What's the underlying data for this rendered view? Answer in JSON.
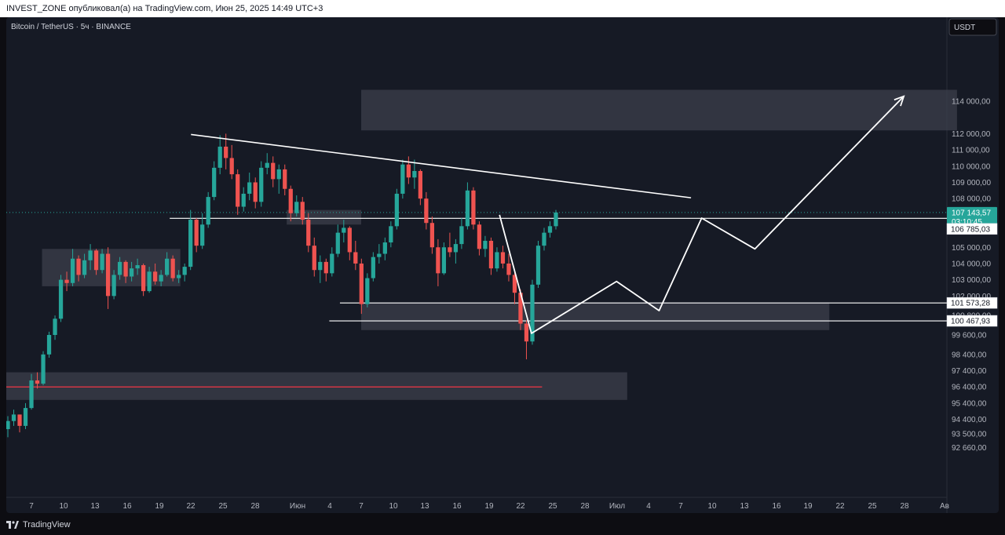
{
  "header": {
    "publisher_line": "INVEST_ZONE опубликовал(а) на TradingView.com, Июн 25, 2025 14:49 UTC+3"
  },
  "symbol": {
    "title": "Bitcoin / TetherUS · 5ч · BINANCE"
  },
  "currency_button": {
    "label": "USDT"
  },
  "footer": {
    "brand": "TradingView"
  },
  "colors": {
    "up": "#26a69a",
    "down": "#ef5350",
    "bg": "#161a25",
    "zone": "#3c3f4b",
    "support": "#f23645"
  },
  "chart_data": {
    "type": "candlestick",
    "symbol": "Bitcoin / TetherUS",
    "interval": "5ч",
    "exchange": "BINANCE",
    "currency": "USDT",
    "y_ticks": [
      92660,
      93500,
      94400,
      95400,
      96400,
      97400,
      98400,
      99600,
      100800,
      102000,
      103000,
      104000,
      105000,
      108000,
      109000,
      110000,
      111000,
      112000,
      114000
    ],
    "y_tick_labels": [
      "92 660,00",
      "93 500,00",
      "94 400,00",
      "95 400,00",
      "96 400,00",
      "97 400,00",
      "98 400,00",
      "99 600,00",
      "100 800,00",
      "102 000,00",
      "103 000,00",
      "104 000,00",
      "105 000,00",
      "108 000,00",
      "109 000,00",
      "110 000,00",
      "111 000,00",
      "112 000,00",
      "114 000,00"
    ],
    "x_ticks": [
      "7",
      "10",
      "13",
      "16",
      "19",
      "22",
      "25",
      "28",
      "Июн",
      "4",
      "7",
      "10",
      "13",
      "16",
      "19",
      "22",
      "25",
      "28",
      "Июл",
      "4",
      "7",
      "10",
      "13",
      "16",
      "19",
      "22",
      "25",
      "28",
      "Ав"
    ],
    "current_price": {
      "value": 107143.57,
      "label": "107 143,57",
      "countdown": "03:10:45"
    },
    "price_levels": [
      {
        "value": 106785.03,
        "label": "106 785,03"
      },
      {
        "value": 101573.28,
        "label": "101 573,28"
      },
      {
        "value": 100467.93,
        "label": "100 467,93"
      }
    ],
    "support_line": 96400,
    "zones": [
      {
        "from": "2025-05-08",
        "to": "2025-05-21",
        "low": 102600,
        "high": 104900
      },
      {
        "from": "2025-05-31",
        "to": "2025-06-07",
        "low": 106400,
        "high": 107300
      },
      {
        "from": "2025-06-07",
        "to": "2025-07-21",
        "low": 99900,
        "high": 101600
      },
      {
        "from": "2025-06-07",
        "to": "2025-08-02",
        "low": 112200,
        "high": 114700
      },
      {
        "from": "2025-04-30",
        "to": "2025-07-02",
        "low": 95600,
        "high": 97300
      }
    ],
    "trendline": [
      {
        "date": "2025-05-22",
        "price": 111950
      },
      {
        "date": "2025-07-08",
        "price": 108050
      }
    ],
    "projection_path": [
      {
        "date": "2025-06-20",
        "price": 107000
      },
      {
        "date": "2025-06-23",
        "price": 99700
      },
      {
        "date": "2025-07-01",
        "price": 102900
      },
      {
        "date": "2025-07-05",
        "price": 101100
      },
      {
        "date": "2025-07-09",
        "price": 106800
      },
      {
        "date": "2025-07-14",
        "price": 104900
      },
      {
        "date": "2025-07-28",
        "price": 114300
      }
    ],
    "candles_ohlc": [
      [
        93800,
        94600,
        93300,
        94300
      ],
      [
        94300,
        95000,
        94000,
        94700
      ],
      [
        94700,
        94700,
        93600,
        94000
      ],
      [
        94000,
        95400,
        93800,
        95100
      ],
      [
        95100,
        97200,
        95000,
        96800
      ],
      [
        96800,
        97300,
        96300,
        96600
      ],
      [
        96600,
        98600,
        96500,
        98400
      ],
      [
        98400,
        99800,
        98200,
        99600
      ],
      [
        99600,
        100800,
        99300,
        100600
      ],
      [
        100600,
        103300,
        100400,
        103000
      ],
      [
        103000,
        103500,
        102300,
        102800
      ],
      [
        102800,
        104900,
        102600,
        104300
      ],
      [
        104300,
        104500,
        102900,
        103300
      ],
      [
        103300,
        104600,
        103100,
        104200
      ],
      [
        104200,
        105200,
        103600,
        104800
      ],
      [
        104800,
        104900,
        103300,
        103600
      ],
      [
        103600,
        104900,
        103400,
        104600
      ],
      [
        104600,
        105000,
        101200,
        102000
      ],
      [
        102000,
        103600,
        101800,
        103300
      ],
      [
        103300,
        104400,
        103000,
        104100
      ],
      [
        104100,
        104200,
        102800,
        103200
      ],
      [
        103200,
        104100,
        102900,
        103700
      ],
      [
        103700,
        104300,
        103300,
        103900
      ],
      [
        103900,
        104000,
        102000,
        102300
      ],
      [
        102300,
        103800,
        102200,
        103500
      ],
      [
        103500,
        104000,
        102700,
        102900
      ],
      [
        102900,
        103600,
        102600,
        103300
      ],
      [
        103300,
        104700,
        103200,
        104300
      ],
      [
        104300,
        104500,
        102900,
        103100
      ],
      [
        103100,
        103600,
        102800,
        103300
      ],
      [
        103300,
        104000,
        102900,
        103800
      ],
      [
        103800,
        107300,
        103600,
        106700
      ],
      [
        106700,
        106800,
        104700,
        105100
      ],
      [
        105100,
        107100,
        104900,
        106400
      ],
      [
        106400,
        108400,
        106200,
        108100
      ],
      [
        108100,
        110300,
        107900,
        109900
      ],
      [
        109900,
        111900,
        109500,
        111200
      ],
      [
        111200,
        112000,
        109800,
        110500
      ],
      [
        110500,
        111300,
        109200,
        109500
      ],
      [
        109500,
        109800,
        107000,
        107500
      ],
      [
        107500,
        108700,
        107200,
        108300
      ],
      [
        108300,
        109600,
        107900,
        109000
      ],
      [
        109000,
        109300,
        107400,
        107800
      ],
      [
        107800,
        110300,
        107500,
        109900
      ],
      [
        109900,
        110800,
        109500,
        110200
      ],
      [
        110200,
        110600,
        108700,
        109200
      ],
      [
        109200,
        110100,
        108300,
        109800
      ],
      [
        109800,
        110100,
        108200,
        108600
      ],
      [
        108600,
        108800,
        106600,
        107100
      ],
      [
        107100,
        108200,
        106900,
        107800
      ],
      [
        107800,
        108100,
        106400,
        106700
      ],
      [
        106700,
        107100,
        104700,
        105100
      ],
      [
        105100,
        105600,
        103200,
        103600
      ],
      [
        103600,
        104500,
        102800,
        104100
      ],
      [
        104100,
        104300,
        102900,
        103400
      ],
      [
        103400,
        105000,
        103200,
        104600
      ],
      [
        104600,
        106400,
        104400,
        105900
      ],
      [
        105900,
        106700,
        105300,
        106200
      ],
      [
        106200,
        106300,
        104200,
        104700
      ],
      [
        104700,
        105400,
        103600,
        104000
      ],
      [
        104000,
        104300,
        100900,
        101500
      ],
      [
        101500,
        103400,
        101300,
        103100
      ],
      [
        103100,
        104700,
        102900,
        104400
      ],
      [
        104400,
        105200,
        104000,
        104600
      ],
      [
        104600,
        105600,
        104200,
        105300
      ],
      [
        105300,
        106600,
        105000,
        106300
      ],
      [
        106300,
        108600,
        106100,
        108300
      ],
      [
        108300,
        110400,
        108000,
        110100
      ],
      [
        110100,
        110600,
        108900,
        109300
      ],
      [
        109300,
        110400,
        108600,
        109700
      ],
      [
        109700,
        109800,
        107600,
        108000
      ],
      [
        108000,
        108400,
        106100,
        106500
      ],
      [
        106500,
        106900,
        104600,
        105000
      ],
      [
        105000,
        105500,
        102600,
        103400
      ],
      [
        103400,
        105300,
        103300,
        105000
      ],
      [
        105000,
        105900,
        104400,
        104700
      ],
      [
        104700,
        105500,
        104000,
        105200
      ],
      [
        105200,
        106800,
        104900,
        106300
      ],
      [
        106300,
        109000,
        106100,
        108500
      ],
      [
        108500,
        108700,
        106100,
        106400
      ],
      [
        106400,
        106600,
        104500,
        104900
      ],
      [
        104900,
        105700,
        104400,
        105400
      ],
      [
        105400,
        105600,
        103300,
        103700
      ],
      [
        103700,
        105000,
        103500,
        104700
      ],
      [
        104700,
        105100,
        103700,
        104000
      ],
      [
        104000,
        104600,
        102900,
        103300
      ],
      [
        103300,
        103500,
        101500,
        102200
      ],
      [
        102200,
        102400,
        99900,
        100300
      ],
      [
        100300,
        100500,
        98100,
        99200
      ],
      [
        99200,
        103000,
        99000,
        102700
      ],
      [
        102700,
        105400,
        102500,
        105100
      ],
      [
        105100,
        106200,
        104800,
        105900
      ],
      [
        105900,
        106600,
        105600,
        106300
      ],
      [
        106300,
        107300,
        106100,
        107143.57
      ]
    ]
  }
}
